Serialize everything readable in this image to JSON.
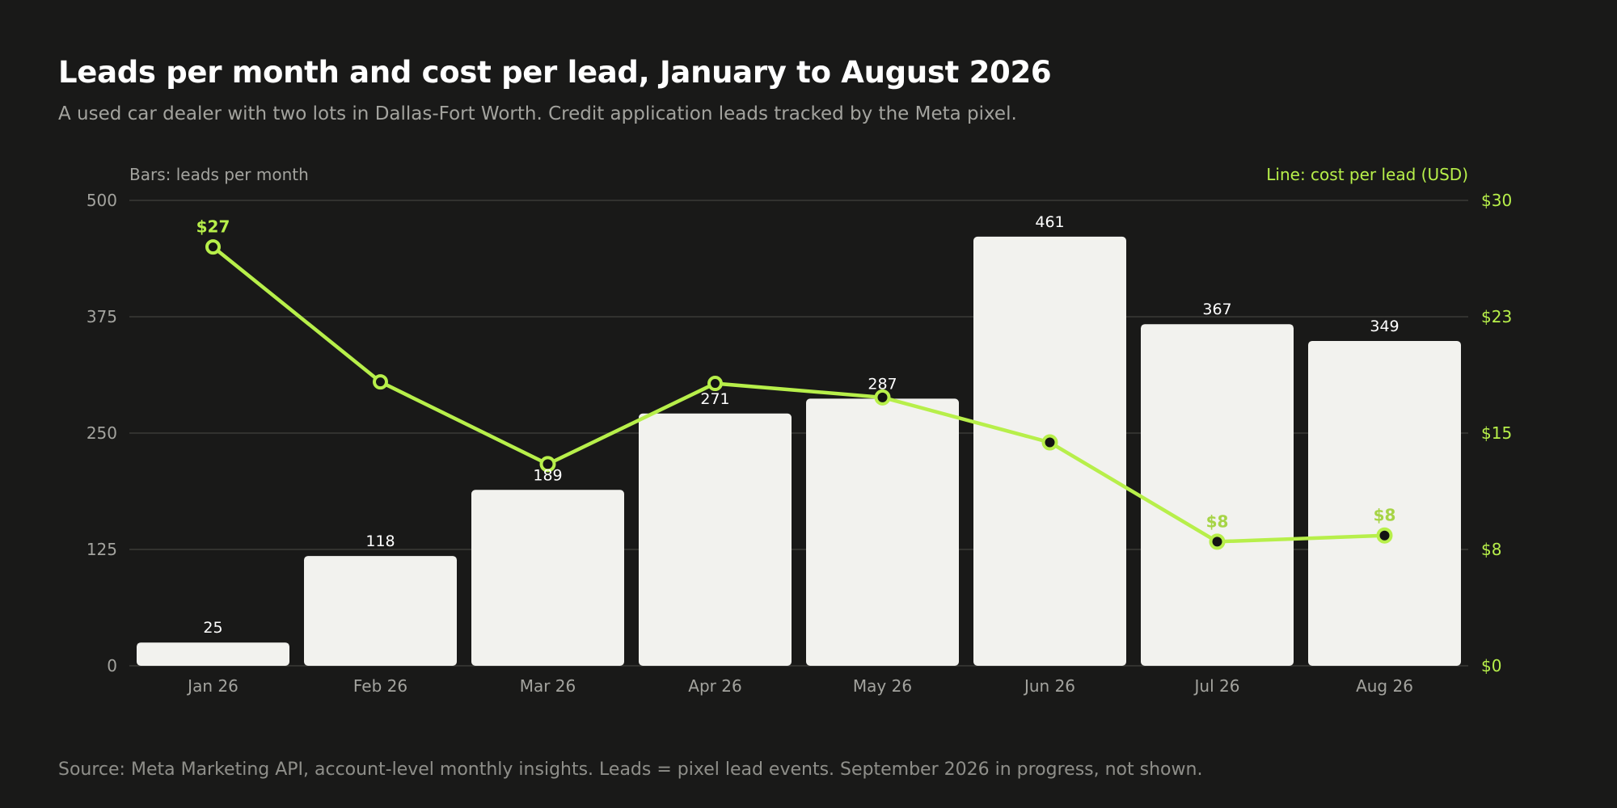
{
  "title": "Leads per month and cost per lead, January to August 2026",
  "subtitle": "A used car dealer with two lots in Dallas-Fort Worth. Credit application leads tracked by the Meta pixel.",
  "source": "Source: Meta Marketing API, account-level monthly insights. Leads = pixel lead events. September 2026 in progress, not shown.",
  "colors": {
    "background": "#191918",
    "bar": "#f2f2ee",
    "line": "#b7ef4a",
    "marker_fill": "#141413",
    "grid": "#3a3a37"
  },
  "chart_data": {
    "type": "bar",
    "categories": [
      "Jan 26",
      "Feb 26",
      "Mar 26",
      "Apr 26",
      "May 26",
      "Jun 26",
      "Jul 26",
      "Aug 26"
    ],
    "series": [
      {
        "type": "bar",
        "axis": "left",
        "values": [
          25,
          118,
          189,
          271,
          287,
          461,
          367,
          349
        ]
      },
      {
        "type": "line",
        "axis": "right",
        "values": [
          27.0,
          18.3,
          13.0,
          18.2,
          17.3,
          14.4,
          8.0,
          8.4
        ]
      }
    ],
    "left_axis": {
      "label": "Bars: leads per month",
      "range": [
        0,
        500
      ],
      "ticks": [
        "0",
        "125",
        "250",
        "375",
        "500"
      ]
    },
    "right_axis": {
      "label": "Line: cost per lead (USD)",
      "range": [
        0,
        30
      ],
      "ticks": [
        "$0",
        "$8",
        "$15",
        "$23",
        "$30"
      ]
    },
    "bar_labels": [
      "25",
      "118",
      "189",
      "271",
      "287",
      "461",
      "367",
      "349"
    ],
    "line_labels": [
      {
        "index": 0,
        "text": "$27"
      },
      {
        "index": 6,
        "text": "$8"
      },
      {
        "index": 7,
        "text": "$8"
      }
    ],
    "hollow_markers": [
      0,
      1,
      3
    ],
    "grid": true
  }
}
